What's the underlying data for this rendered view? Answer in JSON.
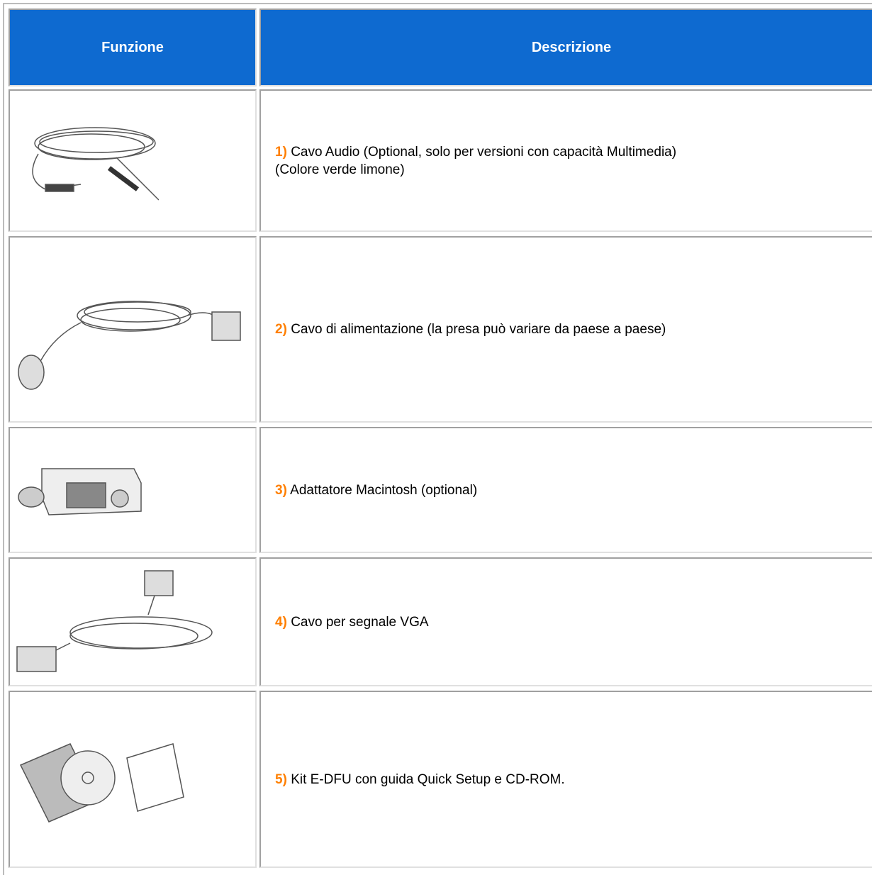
{
  "table": {
    "header": [
      "Funzione",
      "Descrizione"
    ],
    "rows": [
      {
        "number": "1)",
        "lines": [
          "Cavo Audio (Optional, solo per versioni con capacità Multimedia)",
          "(Colore verde limone)"
        ]
      },
      {
        "number": "2)",
        "lines": [
          "Cavo di alimentazione (la presa può variare da paese a paese)"
        ]
      },
      {
        "number": "3)",
        "lines": [
          "Adattatore Macintosh (optional)"
        ]
      },
      {
        "number": "4)",
        "lines": [
          "Cavo per segnale VGA"
        ]
      },
      {
        "number": "5)",
        "lines": [
          "Kit E-DFU con guida Quick Setup e CD-ROM."
        ]
      }
    ]
  }
}
